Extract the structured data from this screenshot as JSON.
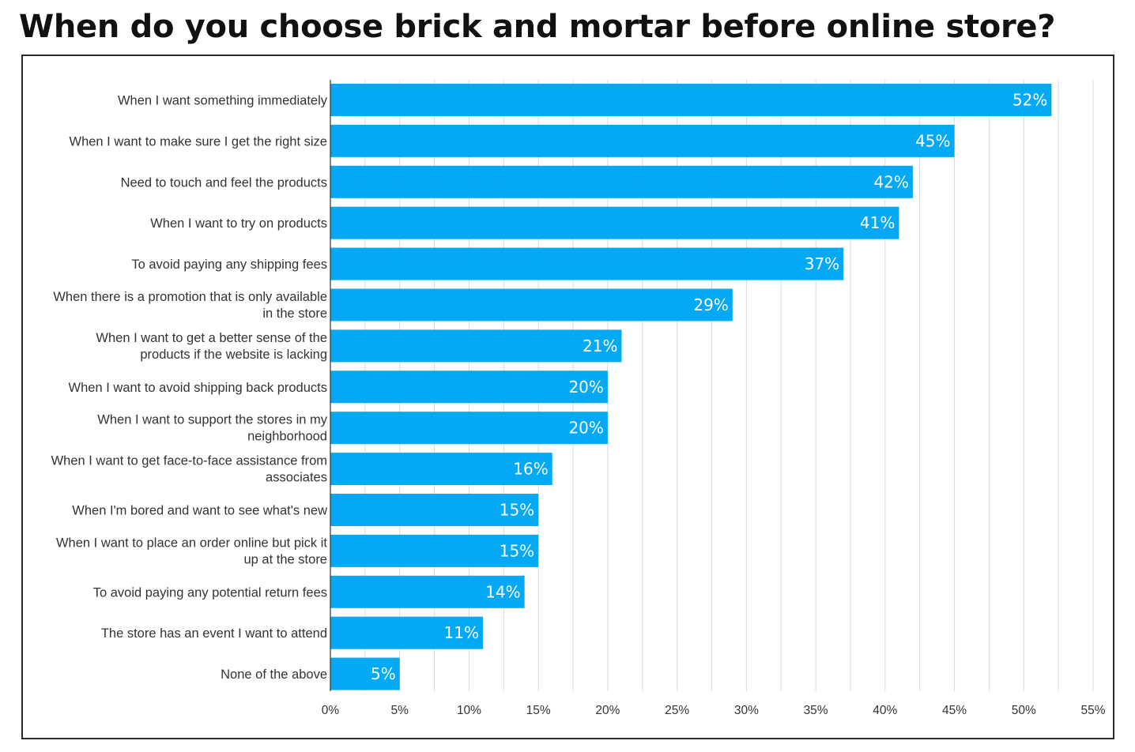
{
  "chart_data": {
    "type": "bar",
    "orientation": "horizontal",
    "title": "When do you choose brick and mortar before online store?",
    "categories": [
      "When I want something immediately",
      "When I want to make sure I get the right size",
      "Need to touch and feel the products",
      "When I want to try on products",
      "To avoid paying any shipping fees",
      "When there is a promotion that is only available in the store",
      "When I want to get a better sense of the products if the website is lacking",
      "When I want to avoid shipping back products",
      "When I want to support the stores in my neighborhood",
      "When I want to get face-to-face assistance from associates",
      "When I'm bored and want to see what's new",
      "When I want to place an order online but pick it up at the store",
      "To avoid paying any potential return fees",
      "The store has an event I want to attend",
      "None of the above"
    ],
    "label_lines": [
      [
        "When I want something immediately"
      ],
      [
        "When I want to make sure I get the right size"
      ],
      [
        "Need to touch and feel the products"
      ],
      [
        "When I want to try on products"
      ],
      [
        "To avoid paying any shipping fees"
      ],
      [
        "When there is a promotion that is only available",
        "in the store"
      ],
      [
        "When I want to get a better sense of the",
        "products if the website is lacking"
      ],
      [
        "When I want to avoid shipping back products"
      ],
      [
        "When I want to support the stores in my",
        "neighborhood"
      ],
      [
        "When I want to get face-to-face assistance from",
        "associates"
      ],
      [
        "When I'm bored and want to see what's new"
      ],
      [
        "When I want to place an order online but pick it",
        "up at the store"
      ],
      [
        "To avoid paying any potential return fees"
      ],
      [
        "The store has an event I want to attend"
      ],
      [
        "None of the above"
      ]
    ],
    "values": [
      52,
      45,
      42,
      41,
      37,
      29,
      21,
      20,
      20,
      16,
      15,
      15,
      14,
      11,
      5
    ],
    "value_labels": [
      "52%",
      "45%",
      "42%",
      "41%",
      "37%",
      "29%",
      "21%",
      "20%",
      "20%",
      "16%",
      "15%",
      "15%",
      "14%",
      "11%",
      "5%"
    ],
    "x_ticks": [
      0,
      5,
      10,
      15,
      20,
      25,
      30,
      35,
      40,
      45,
      50,
      55
    ],
    "x_tick_labels": [
      "0%",
      "5%",
      "10%",
      "15%",
      "20%",
      "25%",
      "30%",
      "35%",
      "40%",
      "45%",
      "50%",
      "55%"
    ],
    "xlim": [
      0,
      55
    ],
    "xlabel": "",
    "ylabel": "",
    "grid": true,
    "bar_color": "#03A9F4",
    "grid_color": "#D9D9D9"
  }
}
